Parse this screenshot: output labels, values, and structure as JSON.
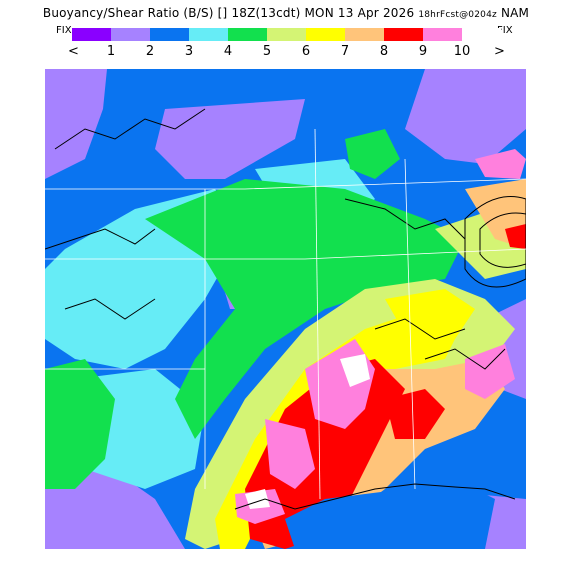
{
  "header": {
    "title": "Buoyancy/Shear Ratio (B/S) [] 18Z(13cdt) MON 13 Apr 2026",
    "subtitle": "18hrFcst@0204z",
    "model": "NAM"
  },
  "legend": {
    "fix_left": "FIX",
    "fix_right": "FIX",
    "prev_label": "<",
    "next_label": ">",
    "ticks": [
      "1",
      "2",
      "3",
      "4",
      "5",
      "6",
      "7",
      "8",
      "9",
      "10"
    ],
    "swatches": [
      "#8a00ff",
      "#a682ff",
      "#0a74f0",
      "#66ecf6",
      "#12e04e",
      "#d4f474",
      "#ffff00",
      "#ffc47a",
      "#ff0000",
      "#ff80dd",
      "#ffffff"
    ]
  },
  "map": {
    "colors": {
      "lv1": "#a682ff",
      "lv2": "#0a74f0",
      "lv3": "#66ecf6",
      "lv4": "#12e04e",
      "lv5": "#d4f474",
      "lv6": "#ffff00",
      "lv7": "#ffc47a",
      "lv8": "#ff0000",
      "lv9": "#ff80dd",
      "lv10": "#ffffff",
      "contour": "#000000"
    }
  }
}
